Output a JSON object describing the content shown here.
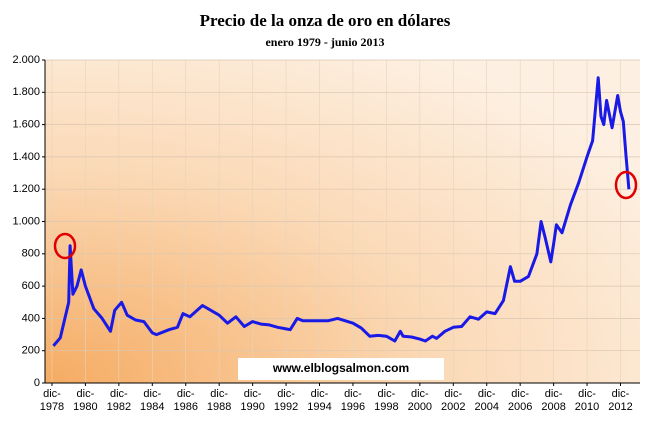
{
  "chart_data": {
    "type": "line",
    "title": "Precio de la onza de oro en dólares",
    "subtitle": "enero 1979 - junio 2013",
    "annotation": "www.elblogsalmon.com",
    "x": [
      "1979-01",
      "1979-06",
      "1979-09",
      "1979-12",
      "1980-01",
      "1980-03",
      "1980-06",
      "1980-09",
      "1980-12",
      "1981-06",
      "1981-12",
      "1982-06",
      "1982-09",
      "1983-02",
      "1983-06",
      "1983-12",
      "1984-06",
      "1984-12",
      "1985-03",
      "1985-12",
      "1986-06",
      "1986-10",
      "1987-03",
      "1987-12",
      "1988-06",
      "1988-12",
      "1989-06",
      "1989-12",
      "1990-06",
      "1990-12",
      "1991-06",
      "1991-12",
      "1992-06",
      "1992-12",
      "1993-03",
      "1993-08",
      "1993-12",
      "1994-06",
      "1995-06",
      "1996-01",
      "1996-12",
      "1997-06",
      "1997-12",
      "1998-06",
      "1998-12",
      "1999-06",
      "1999-10",
      "1999-12",
      "2000-06",
      "2000-12",
      "2001-04",
      "2001-09",
      "2001-12",
      "2002-06",
      "2002-12",
      "2003-06",
      "2003-12",
      "2004-06",
      "2004-12",
      "2005-06",
      "2005-12",
      "2006-05",
      "2006-08",
      "2006-12",
      "2007-06",
      "2007-12",
      "2008-03",
      "2008-06",
      "2008-10",
      "2008-12",
      "2009-02",
      "2009-06",
      "2009-12",
      "2010-06",
      "2010-12",
      "2011-04",
      "2011-08",
      "2011-10",
      "2011-12",
      "2012-02",
      "2012-06",
      "2012-10",
      "2012-12",
      "2013-02",
      "2013-04",
      "2013-06"
    ],
    "series": [
      {
        "name": "Precio",
        "color": "#1a1ae6",
        "values": [
          230,
          280,
          390,
          500,
          850,
          550,
          600,
          700,
          600,
          460,
          400,
          320,
          450,
          500,
          420,
          390,
          380,
          310,
          300,
          330,
          345,
          430,
          410,
          480,
          450,
          420,
          370,
          410,
          350,
          380,
          365,
          360,
          345,
          335,
          330,
          400,
          385,
          385,
          385,
          400,
          370,
          340,
          290,
          295,
          290,
          260,
          320,
          290,
          285,
          272,
          260,
          290,
          276,
          320,
          345,
          350,
          410,
          395,
          440,
          430,
          510,
          720,
          630,
          630,
          660,
          800,
          1000,
          900,
          750,
          860,
          980,
          930,
          1100,
          1240,
          1400,
          1500,
          1890,
          1650,
          1600,
          1750,
          1580,
          1780,
          1680,
          1620,
          1400,
          1200
        ]
      }
    ],
    "xlim": [
      "1978-07",
      "2014-02"
    ],
    "xticks": [
      {
        "value": "1978-12",
        "label": "dic-\n1978"
      },
      {
        "value": "1980-12",
        "label": "dic-\n1980"
      },
      {
        "value": "1982-12",
        "label": "dic-\n1982"
      },
      {
        "value": "1984-12",
        "label": "dic-\n1984"
      },
      {
        "value": "1986-12",
        "label": "dic-\n1986"
      },
      {
        "value": "1988-12",
        "label": "dic-\n1988"
      },
      {
        "value": "1990-12",
        "label": "dic-\n1990"
      },
      {
        "value": "1992-12",
        "label": "dic-\n1992"
      },
      {
        "value": "1994-12",
        "label": "dic-\n1994"
      },
      {
        "value": "1996-12",
        "label": "dic-\n1996"
      },
      {
        "value": "1998-12",
        "label": "dic-\n1998"
      },
      {
        "value": "2000-12",
        "label": "dic-\n2000"
      },
      {
        "value": "2002-12",
        "label": "dic-\n2002"
      },
      {
        "value": "2004-12",
        "label": "dic-\n2004"
      },
      {
        "value": "2006-12",
        "label": "dic-\n2006"
      },
      {
        "value": "2008-12",
        "label": "dic-\n2008"
      },
      {
        "value": "2010-12",
        "label": "dic-\n2010"
      },
      {
        "value": "2012-12",
        "label": "dic-\n2012"
      }
    ],
    "ylim": [
      0,
      2000
    ],
    "yticks": [
      0,
      200,
      400,
      600,
      800,
      {
        "value": 1000,
        "label": "1.000"
      },
      {
        "value": 1200,
        "label": "1.200"
      },
      {
        "value": 1400,
        "label": "1.400"
      },
      {
        "value": 1600,
        "label": "1.600"
      },
      {
        "value": 1800,
        "label": "1.800"
      },
      {
        "value": 2000,
        "label": "2.000"
      }
    ],
    "grid": true
  }
}
